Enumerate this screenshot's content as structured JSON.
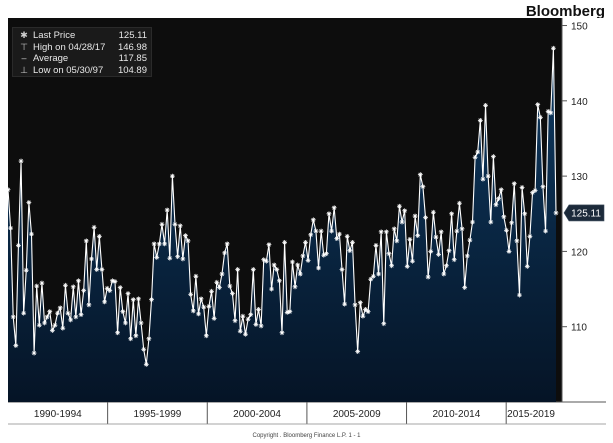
{
  "brand": "Bloomberg",
  "copyright": "Copyright . Bloomberg Finance L.P.     1 - 1",
  "legend": [
    {
      "label": "Last Price",
      "value": "125.11",
      "symbol_icon": "asterisk-icon"
    },
    {
      "label": "High on 04/28/17",
      "value": "146.98",
      "symbol_icon": "high-marker-icon"
    },
    {
      "label": "Average",
      "value": "117.85",
      "symbol_icon": "average-line-icon"
    },
    {
      "label": "Low on 05/30/97",
      "value": "104.89",
      "symbol_icon": "low-marker-icon"
    }
  ],
  "last_price_tag": "125.11",
  "colors": {
    "background": "#0d0d0d",
    "area_top": "#0e3a62",
    "area_bottom": "#051426",
    "line": "#ffffff",
    "last_tag_bg": "#1c2a3a"
  },
  "chart_data": {
    "type": "area",
    "title": "",
    "xlabel": "",
    "ylabel": "",
    "ylim": [
      100,
      151
    ],
    "y_ticks": [
      110,
      120,
      130,
      140,
      150
    ],
    "x_period_labels": [
      "1990-1994",
      "1995-1999",
      "2000-2004",
      "2005-2009",
      "2010-2014",
      "2015-2019"
    ],
    "grid": false,
    "legend_position": "top-left",
    "series": [
      {
        "name": "Last Price",
        "values": [
          128.2,
          123.1,
          111.3,
          107.5,
          120.8,
          132.0,
          111.8,
          117.5,
          126.5,
          122.3,
          106.5,
          115.4,
          110.2,
          115.8,
          110.5,
          111.3,
          112.0,
          109.5,
          110.2,
          111.8,
          112.5,
          109.8,
          115.5,
          111.8,
          110.9,
          115.3,
          111.3,
          116.1,
          111.6,
          114.8,
          121.4,
          112.9,
          119.0,
          123.2,
          117.6,
          122.0,
          117.6,
          113.3,
          115.1,
          114.8,
          116.1,
          116.0,
          109.2,
          115.2,
          112.0,
          110.5,
          114.4,
          108.4,
          113.6,
          108.8,
          113.7,
          110.5,
          107.0,
          105.0,
          108.4,
          113.6,
          121.0,
          119.2,
          121.0,
          123.6,
          121.0,
          125.5,
          119.1,
          130.0,
          123.6,
          119.3,
          123.4,
          119.0,
          122.1,
          121.4,
          114.3,
          112.1,
          116.7,
          111.7,
          113.7,
          112.6,
          108.8,
          112.7,
          114.7,
          111.1,
          115.9,
          115.2,
          117.0,
          119.8,
          121.0,
          115.4,
          114.4,
          110.8,
          117.6,
          109.4,
          111.4,
          109.0,
          111.0,
          111.6,
          117.6,
          110.3,
          112.3,
          110.1,
          118.9,
          118.7,
          120.9,
          115.0,
          118.2,
          117.6,
          116.1,
          109.2,
          121.2,
          111.9,
          112.0,
          118.6,
          115.3,
          118.2,
          117.0,
          119.4,
          121.2,
          118.8,
          122.2,
          124.2,
          122.7,
          117.8,
          122.7,
          119.5,
          119.7,
          125.0,
          122.7,
          125.8,
          121.7,
          122.3,
          117.6,
          113.0,
          122.0,
          120.1,
          121.2,
          112.9,
          106.7,
          113.2,
          111.4,
          112.3,
          112.0,
          116.3,
          116.7,
          120.8,
          117.0,
          122.6,
          110.4,
          122.6,
          119.7,
          118.1,
          123.0,
          121.4,
          126.0,
          123.9,
          125.4,
          118.0,
          121.6,
          118.7,
          124.7,
          122.1,
          130.2,
          128.6,
          124.5,
          116.6,
          120.0,
          125.2,
          121.9,
          119.6,
          122.6,
          117.0,
          118.1,
          120.1,
          125.0,
          118.9,
          122.7,
          126.4,
          123.0,
          115.2,
          119.4,
          121.5,
          123.9,
          132.5,
          133.2,
          137.4,
          129.6,
          139.4,
          130.0,
          123.9,
          132.6,
          126.2,
          127.0,
          128.2,
          124.6,
          122.8,
          120.0,
          123.8,
          129.0,
          121.4,
          114.2,
          128.5,
          125.0,
          118.0,
          122.0,
          127.8,
          128.1,
          139.5,
          137.8,
          128.6,
          122.7,
          138.6,
          138.4,
          146.98,
          125.11
        ]
      }
    ]
  }
}
